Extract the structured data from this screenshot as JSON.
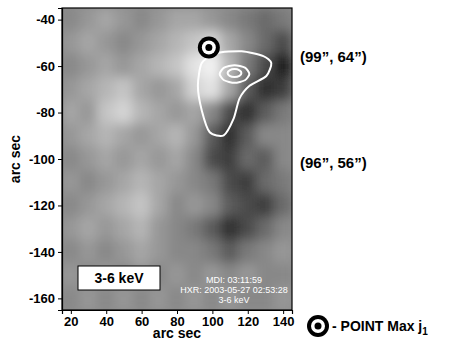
{
  "chart_data": {
    "type": "heatmap",
    "xlabel": "arc sec",
    "ylabel": "arc sec",
    "xlim": [
      15,
      145
    ],
    "ylim": [
      -165,
      -35
    ],
    "xticks": [
      20,
      40,
      60,
      80,
      100,
      120,
      140
    ],
    "yticks": [
      -40,
      -60,
      -80,
      -100,
      -120,
      -140,
      -160
    ],
    "cell_x": [
      20,
      30,
      40,
      50,
      60,
      70,
      80,
      90,
      100,
      110,
      120,
      130,
      140
    ],
    "cell_y": [
      -40,
      -50,
      -60,
      -70,
      -80,
      -90,
      -100,
      -110,
      -120,
      -130,
      -140,
      -150,
      -160
    ],
    "cells": [
      [
        0.5,
        0.55,
        0.6,
        0.55,
        0.5,
        0.55,
        0.6,
        0.6,
        0.55,
        0.5,
        0.45,
        0.4,
        0.45
      ],
      [
        0.55,
        0.6,
        0.55,
        0.5,
        0.55,
        0.6,
        0.65,
        0.7,
        0.75,
        0.6,
        0.5,
        0.4,
        0.3
      ],
      [
        0.5,
        0.55,
        0.6,
        0.55,
        0.6,
        0.65,
        0.7,
        0.8,
        0.85,
        0.65,
        0.45,
        0.3,
        0.15
      ],
      [
        0.55,
        0.6,
        0.65,
        0.7,
        0.6,
        0.55,
        0.6,
        0.75,
        0.8,
        0.6,
        0.35,
        0.2,
        0.25
      ],
      [
        0.6,
        0.55,
        0.7,
        0.75,
        0.65,
        0.6,
        0.55,
        0.6,
        0.5,
        0.3,
        0.2,
        0.35,
        0.45
      ],
      [
        0.55,
        0.6,
        0.65,
        0.6,
        0.55,
        0.6,
        0.65,
        0.55,
        0.35,
        0.2,
        0.35,
        0.5,
        0.5
      ],
      [
        0.5,
        0.55,
        0.6,
        0.55,
        0.6,
        0.55,
        0.6,
        0.5,
        0.3,
        0.25,
        0.4,
        0.35,
        0.5
      ],
      [
        0.55,
        0.5,
        0.55,
        0.6,
        0.65,
        0.6,
        0.55,
        0.5,
        0.45,
        0.3,
        0.25,
        0.4,
        0.45
      ],
      [
        0.5,
        0.55,
        0.6,
        0.65,
        0.7,
        0.6,
        0.5,
        0.55,
        0.5,
        0.35,
        0.3,
        0.25,
        0.4
      ],
      [
        0.55,
        0.6,
        0.55,
        0.6,
        0.65,
        0.55,
        0.5,
        0.45,
        0.35,
        0.2,
        0.3,
        0.4,
        0.5
      ],
      [
        0.5,
        0.55,
        0.5,
        0.55,
        0.6,
        0.55,
        0.5,
        0.5,
        0.45,
        0.35,
        0.45,
        0.5,
        0.55
      ],
      [
        0.55,
        0.5,
        0.55,
        0.5,
        0.55,
        0.5,
        0.55,
        0.5,
        0.55,
        0.5,
        0.55,
        0.5,
        0.5
      ],
      [
        0.5,
        0.55,
        0.5,
        0.55,
        0.5,
        0.55,
        0.5,
        0.55,
        0.5,
        0.55,
        0.5,
        0.5,
        0.55
      ]
    ],
    "contours": [
      {
        "x": [
          94,
          102.4,
          116.5,
          128.8,
          133.3,
          130.5,
          121,
          115.3,
          112,
          106.4,
          98.5,
          94,
          91.8
        ],
        "y": [
          -58.7,
          -54.5,
          -53.6,
          -55.7,
          -58.7,
          -64.3,
          -68.5,
          -74,
          -82.6,
          -89.8,
          -88.5,
          -79.1,
          -68.5
        ]
      },
      {
        "x": [
          120.9,
          118.4,
          112.5,
          106.6,
          104.1,
          106.6,
          112.5,
          118.4
        ],
        "y": [
          -63.4,
          -60.7,
          -59.6,
          -60.7,
          -63.4,
          -66.1,
          -67.2,
          -66.1
        ]
      },
      {
        "x": [
          116.4,
          115.3,
          112.5,
          109.7,
          108.6,
          109.7,
          112.5,
          115.3
        ],
        "y": [
          -63,
          -61.8,
          -61.3,
          -61.8,
          -63,
          -64.2,
          -64.7,
          -64.2
        ]
      }
    ],
    "point": {
      "x": 98,
      "y": -52
    },
    "image_label": "3-6 keV",
    "caption_lines": [
      "MDI: 03:11:59",
      "HXR: 2003-05-27 02:53:28",
      "3-6 keV"
    ],
    "side_labels": [
      "(99”, 64”)",
      "(96”, 56”)"
    ],
    "point_label": "- POINT Max j",
    "point_label_subscript": "1"
  }
}
